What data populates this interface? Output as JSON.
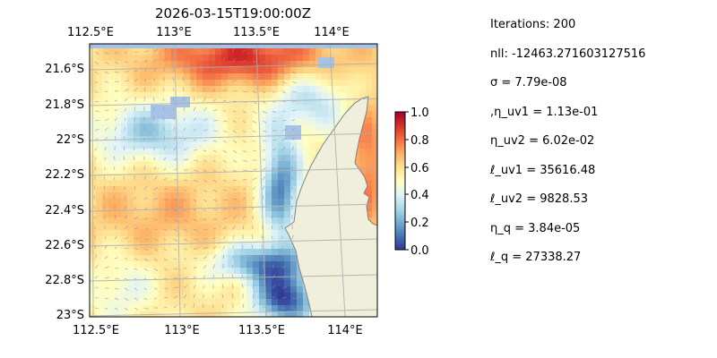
{
  "chart_data": {
    "type": "heatmap",
    "title": "2026-03-15T19:00:00Z",
    "x_ticks_top": [
      "112.5°E",
      "113°E",
      "113.5°E",
      "114°E"
    ],
    "x_ticks_bottom": [
      "112.5°E",
      "113°E",
      "113.5°E",
      "114°E"
    ],
    "y_ticks": [
      "21.6°S",
      "21.8°S",
      "22°S",
      "22.2°S",
      "22.4°S",
      "22.6°S",
      "22.8°S",
      "23°S"
    ],
    "xlim_deg": [
      112.5,
      114.2
    ],
    "ylim_deg": [
      -23.0,
      -21.5
    ],
    "grid": true,
    "colorbar": {
      "ticks": [
        "0.0",
        "0.2",
        "0.4",
        "0.6",
        "0.8",
        "1.0"
      ],
      "range": [
        0.0,
        1.0
      ],
      "colormap": "RdYlBu_r"
    },
    "colors": {
      "ocean": "#a6c2e4",
      "land": "#f0efdc",
      "coast": "#7a8390",
      "grid": "#b0b0b0"
    }
  },
  "stats": {
    "iterations": "Iterations: 200",
    "nll": "nll: -12463.271603127516",
    "sigma": "σ = 7.79e-08",
    "eta_uv1": ",η_uv1 = 1.13e-01",
    "eta_uv2": "η_uv2 = 6.02e-02",
    "ell_uv1": "ℓ_uv1 = 35616.48",
    "ell_uv2": "ℓ_uv2 = 9828.53",
    "eta_q": "η_q = 3.84e-05",
    "ell_q": "ℓ_q = 27338.27"
  }
}
